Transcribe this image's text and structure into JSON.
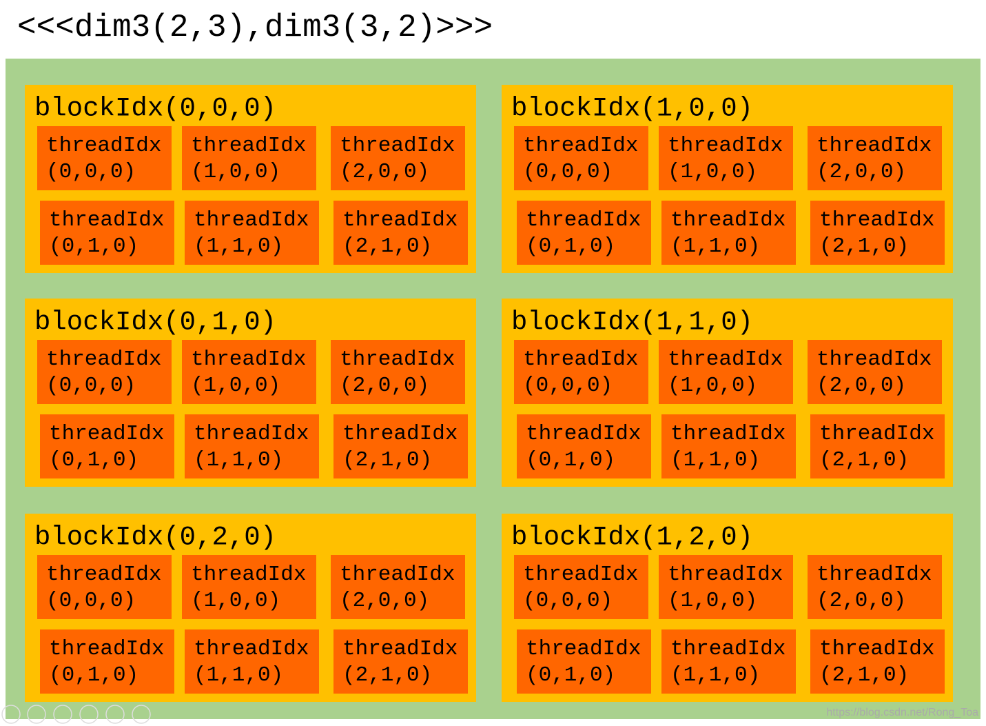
{
  "title": "<<<dim3(2,3),dim3(3,2)>>>",
  "blocks": [
    {
      "label": "blockIdx(0,0,0)",
      "threads": [
        {
          "name": "threadIdx",
          "index": "(0,0,0)"
        },
        {
          "name": "threadIdx",
          "index": "(1,0,0)"
        },
        {
          "name": "threadIdx",
          "index": "(2,0,0)"
        },
        {
          "name": "threadIdx",
          "index": "(0,1,0)"
        },
        {
          "name": "threadIdx",
          "index": "(1,1,0)"
        },
        {
          "name": "threadIdx",
          "index": "(2,1,0)"
        }
      ]
    },
    {
      "label": "blockIdx(1,0,0)",
      "threads": [
        {
          "name": "threadIdx",
          "index": "(0,0,0)"
        },
        {
          "name": "threadIdx",
          "index": "(1,0,0)"
        },
        {
          "name": "threadIdx",
          "index": "(2,0,0)"
        },
        {
          "name": "threadIdx",
          "index": "(0,1,0)"
        },
        {
          "name": "threadIdx",
          "index": "(1,1,0)"
        },
        {
          "name": "threadIdx",
          "index": "(2,1,0)"
        }
      ]
    },
    {
      "label": "blockIdx(0,1,0)",
      "threads": [
        {
          "name": "threadIdx",
          "index": "(0,0,0)"
        },
        {
          "name": "threadIdx",
          "index": "(1,0,0)"
        },
        {
          "name": "threadIdx",
          "index": "(2,0,0)"
        },
        {
          "name": "threadIdx",
          "index": "(0,1,0)"
        },
        {
          "name": "threadIdx",
          "index": "(1,1,0)"
        },
        {
          "name": "threadIdx",
          "index": "(2,1,0)"
        }
      ]
    },
    {
      "label": "blockIdx(1,1,0)",
      "threads": [
        {
          "name": "threadIdx",
          "index": "(0,0,0)"
        },
        {
          "name": "threadIdx",
          "index": "(1,0,0)"
        },
        {
          "name": "threadIdx",
          "index": "(2,0,0)"
        },
        {
          "name": "threadIdx",
          "index": "(0,1,0)"
        },
        {
          "name": "threadIdx",
          "index": "(1,1,0)"
        },
        {
          "name": "threadIdx",
          "index": "(2,1,0)"
        }
      ]
    },
    {
      "label": "blockIdx(0,2,0)",
      "threads": [
        {
          "name": "threadIdx",
          "index": "(0,0,0)"
        },
        {
          "name": "threadIdx",
          "index": "(1,0,0)"
        },
        {
          "name": "threadIdx",
          "index": "(2,0,0)"
        },
        {
          "name": "threadIdx",
          "index": "(0,1,0)"
        },
        {
          "name": "threadIdx",
          "index": "(1,1,0)"
        },
        {
          "name": "threadIdx",
          "index": "(2,1,0)"
        }
      ]
    },
    {
      "label": "blockIdx(1,2,0)",
      "threads": [
        {
          "name": "threadIdx",
          "index": "(0,0,0)"
        },
        {
          "name": "threadIdx",
          "index": "(1,0,0)"
        },
        {
          "name": "threadIdx",
          "index": "(2,0,0)"
        },
        {
          "name": "threadIdx",
          "index": "(0,1,0)"
        },
        {
          "name": "threadIdx",
          "index": "(1,1,0)"
        },
        {
          "name": "threadIdx",
          "index": "(2,1,0)"
        }
      ]
    }
  ],
  "watermark": "https://blog.csdn.net/Rong_Toa"
}
